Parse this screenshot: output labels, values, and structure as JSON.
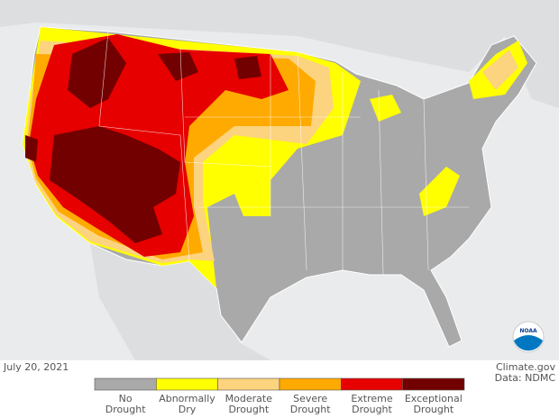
{
  "map": {
    "date": "July 20, 2021",
    "credit": "Climate.gov",
    "source": "Data: NDMC",
    "logo": "NOAA",
    "legend": [
      {
        "label": [
          "No",
          "Drought"
        ],
        "color": "#a9a9a9"
      },
      {
        "label": [
          "Abnormally",
          "Dry"
        ],
        "color": "#ffff00"
      },
      {
        "label": [
          "Moderate",
          "Drought"
        ],
        "color": "#fcd37f"
      },
      {
        "label": [
          "Severe",
          "Drought"
        ],
        "color": "#ffaa00"
      },
      {
        "label": [
          "Extreme",
          "Drought"
        ],
        "color": "#e60000"
      },
      {
        "label": [
          "Exceptional",
          "Drought"
        ],
        "color": "#730000"
      }
    ]
  }
}
